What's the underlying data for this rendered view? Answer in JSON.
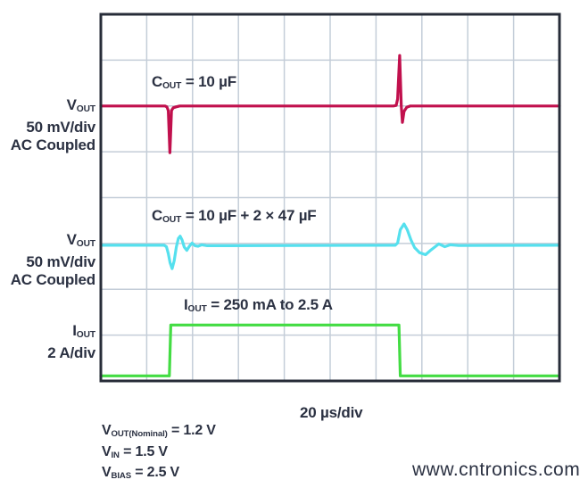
{
  "colors": {
    "background": "#ffffff",
    "text": "#2b3142",
    "plot_border": "#272c38",
    "grid": "#c4cdd8",
    "trace_red": "#c1104d",
    "trace_cyan": "#55e0ee",
    "trace_green": "#43dc43",
    "watermark": "#b6e5a7"
  },
  "left_labels": [
    {
      "signal_main": "V",
      "signal_sub": "OUT",
      "line2": "50 mV/div",
      "line3": "AC Coupled"
    },
    {
      "signal_main": "V",
      "signal_sub": "OUT",
      "line2": "50 mV/div",
      "line3": "AC Coupled"
    },
    {
      "signal_main": "I",
      "signal_sub": "OUT",
      "line2": "2 A/div"
    }
  ],
  "annotations": [
    {
      "main": "C",
      "sub": "OUT",
      "rest": " = 10 µF"
    },
    {
      "main": "C",
      "sub": "OUT",
      "rest": " = 10 µF + 2 × 47 µF"
    },
    {
      "main": "I",
      "sub": "OUT",
      "rest": " = 250 mA to 2.5 A"
    }
  ],
  "time_scale_label": "20 µs/div",
  "footer": {
    "lines": [
      {
        "main": "V",
        "sub": "OUT(Nominal)",
        "rest": " = 1.2 V"
      },
      {
        "main": "V",
        "sub": "IN",
        "rest": " = 1.5 V"
      },
      {
        "main": "V",
        "sub": "BIAS",
        "rest": " = 2.5 V"
      }
    ]
  },
  "watermark": "www.cntronics.com",
  "chart_data": {
    "type": "line",
    "subtype": "oscilloscope-transient-response",
    "x_divisions": 10,
    "y_divisions": 8,
    "time_per_div": "20 µs/div",
    "grid": true,
    "points_units": "x = horizontal divisions (20 µs each), y = vertical divisions measured from top of graticule",
    "series": [
      {
        "id": "vout-cout-10uf",
        "name": "VOUT with COUT = 10 µF",
        "scale": "50 mV/div",
        "coupling": "AC Coupled",
        "color": "#c1104d",
        "baseline_div": 2.0,
        "transient": {
          "dip_mV": -50,
          "spike_mV": 55,
          "load_step_us": 30,
          "load_release_us": 130
        },
        "points": [
          [
            0,
            2.0
          ],
          [
            1.4,
            2.0
          ],
          [
            1.44,
            2.02
          ],
          [
            1.47,
            2.1
          ],
          [
            1.505,
            3.02
          ],
          [
            1.54,
            2.1
          ],
          [
            1.58,
            2.04
          ],
          [
            1.64,
            2.02
          ],
          [
            1.72,
            2.0
          ],
          [
            6.38,
            2.0
          ],
          [
            6.44,
            1.99
          ],
          [
            6.47,
            1.85
          ],
          [
            6.515,
            0.9
          ],
          [
            6.55,
            2.0
          ],
          [
            6.575,
            2.36
          ],
          [
            6.61,
            2.12
          ],
          [
            6.67,
            2.03
          ],
          [
            6.75,
            2.0
          ],
          [
            10,
            2.0
          ]
        ]
      },
      {
        "id": "vout-cout-10uf-2x47uf",
        "name": "VOUT with COUT = 10 µF + 2 × 47 µF",
        "scale": "50 mV/div",
        "coupling": "AC Coupled",
        "color": "#55e0ee",
        "baseline_div": 5.04,
        "transient": {
          "dip_mV": -26,
          "overshoot_mV": 23,
          "load_step_us": 30,
          "load_release_us": 130
        },
        "points": [
          [
            0,
            5.04
          ],
          [
            1.38,
            5.04
          ],
          [
            1.43,
            5.07
          ],
          [
            1.47,
            5.22
          ],
          [
            1.51,
            5.42
          ],
          [
            1.555,
            5.55
          ],
          [
            1.6,
            5.38
          ],
          [
            1.645,
            5.08
          ],
          [
            1.69,
            4.89
          ],
          [
            1.73,
            4.84
          ],
          [
            1.77,
            4.92
          ],
          [
            1.82,
            5.08
          ],
          [
            1.875,
            5.15
          ],
          [
            1.93,
            5.06
          ],
          [
            1.99,
            4.99
          ],
          [
            2.05,
            5.05
          ],
          [
            2.12,
            5.06
          ],
          [
            2.2,
            5.03
          ],
          [
            2.32,
            5.05
          ],
          [
            6.42,
            5.04
          ],
          [
            6.47,
            4.99
          ],
          [
            6.53,
            4.7
          ],
          [
            6.61,
            4.575
          ],
          [
            6.68,
            4.7
          ],
          [
            6.76,
            4.92
          ],
          [
            6.84,
            5.09
          ],
          [
            6.95,
            5.2
          ],
          [
            7.08,
            5.245
          ],
          [
            7.2,
            5.14
          ],
          [
            7.37,
            5.01
          ],
          [
            7.5,
            5.07
          ],
          [
            7.62,
            5.03
          ],
          [
            7.8,
            5.045
          ],
          [
            10,
            5.04
          ]
        ]
      },
      {
        "id": "iout",
        "name": "IOUT load step 250 mA to 2.5 A",
        "scale": "2 A/div",
        "color": "#43dc43",
        "low_level_div": 7.89,
        "high_level_div": 6.78,
        "step_up_us": 30,
        "step_down_us": 130,
        "points": [
          [
            0,
            7.89
          ],
          [
            1.495,
            7.89
          ],
          [
            1.525,
            6.78
          ],
          [
            6.5,
            6.78
          ],
          [
            6.53,
            7.89
          ],
          [
            10,
            7.89
          ]
        ]
      }
    ]
  }
}
